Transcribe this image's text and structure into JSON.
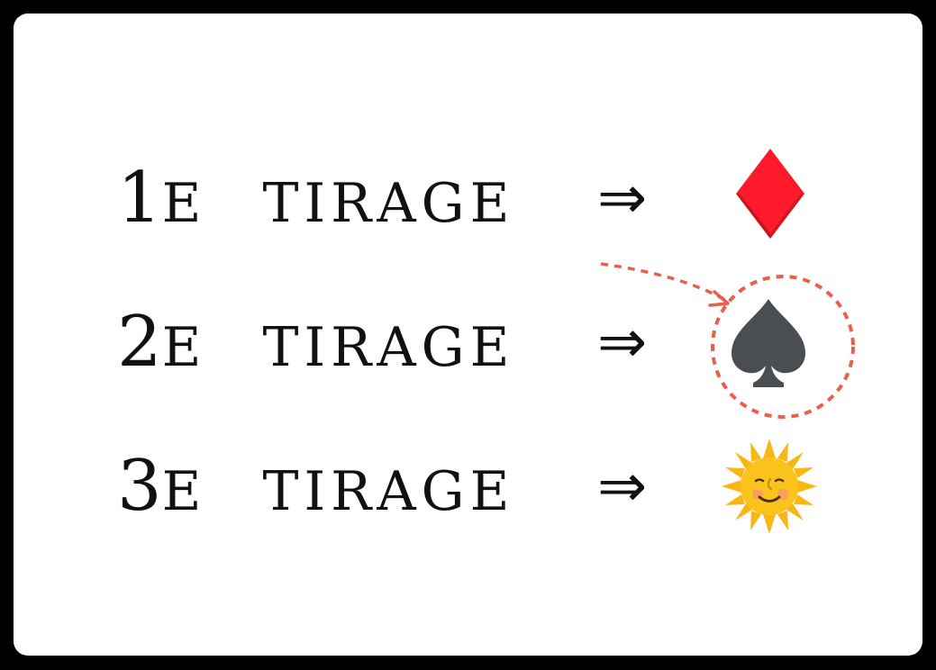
{
  "rows": [
    {
      "number": "1",
      "suffix": "e",
      "word": "tirage",
      "arrow": "⇒",
      "result_icon": "red-diamond-suit-icon"
    },
    {
      "number": "2",
      "suffix": "e",
      "word": "tirage",
      "arrow": "⇒",
      "result_icon": "black-spade-suit-icon"
    },
    {
      "number": "3",
      "suffix": "e",
      "word": "tirage",
      "arrow": "⇒",
      "result_icon": "sun-with-face-icon"
    }
  ],
  "highlight": {
    "target_row": 2,
    "style": "dashed-circle-with-arrow",
    "color": "#e8604c"
  },
  "colors": {
    "diamond": "#ff1a2b",
    "spade": "#4a4d52",
    "sun": "#f9c21b",
    "highlight": "#e8604c"
  }
}
